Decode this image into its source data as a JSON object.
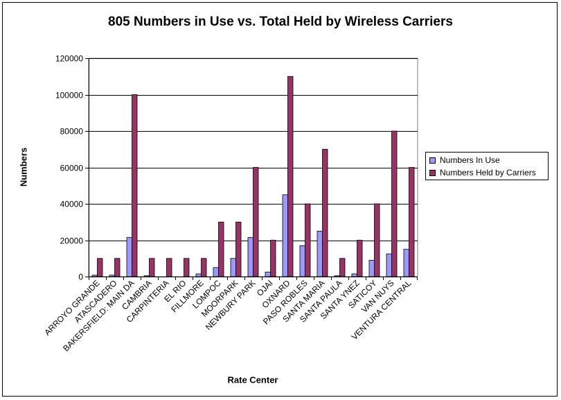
{
  "chart_data": {
    "type": "bar",
    "title": "805 Numbers in Use vs. Total Held by Wireless Carriers",
    "xlabel": "Rate Center",
    "ylabel": "Numbers",
    "ylim": [
      0,
      120000
    ],
    "yticks": [
      "0",
      "20000",
      "40000",
      "60000",
      "80000",
      "100000",
      "120000"
    ],
    "grid": true,
    "legend_position": "right",
    "categories": [
      "ARROYO GRANDE",
      "ATASCADERO",
      "BAKERSFIELD: MAIN DA",
      "CAMBRIA",
      "CARPINTERIA",
      "EL RIO",
      "FILLMORE",
      "LOMPOC",
      "MOORPARK",
      "NEWBURY PARK",
      "OJAI",
      "OXNARD",
      "PASO ROBLES",
      "SANTA MARIA",
      "SANTA PAULA",
      "SANTA YNEZ",
      "SATICOY",
      "VAN NUYS",
      "VENTURA CENTRAL"
    ],
    "series": [
      {
        "name": "Numbers In Use",
        "color": "#9999ff",
        "values": [
          800,
          800,
          21500,
          500,
          0,
          0,
          1500,
          5000,
          10000,
          21500,
          2500,
          45000,
          17000,
          25000,
          500,
          1500,
          9000,
          12500,
          15000
        ]
      },
      {
        "name": "Numbers Held by Carriers",
        "color": "#993366",
        "values": [
          10000,
          10000,
          100000,
          10000,
          10000,
          10000,
          10000,
          30000,
          30000,
          60000,
          20000,
          110000,
          40000,
          70000,
          10000,
          20000,
          40000,
          80000,
          60000
        ]
      }
    ],
    "plot_background": "#ffffff",
    "gridline_color": "#000000"
  }
}
